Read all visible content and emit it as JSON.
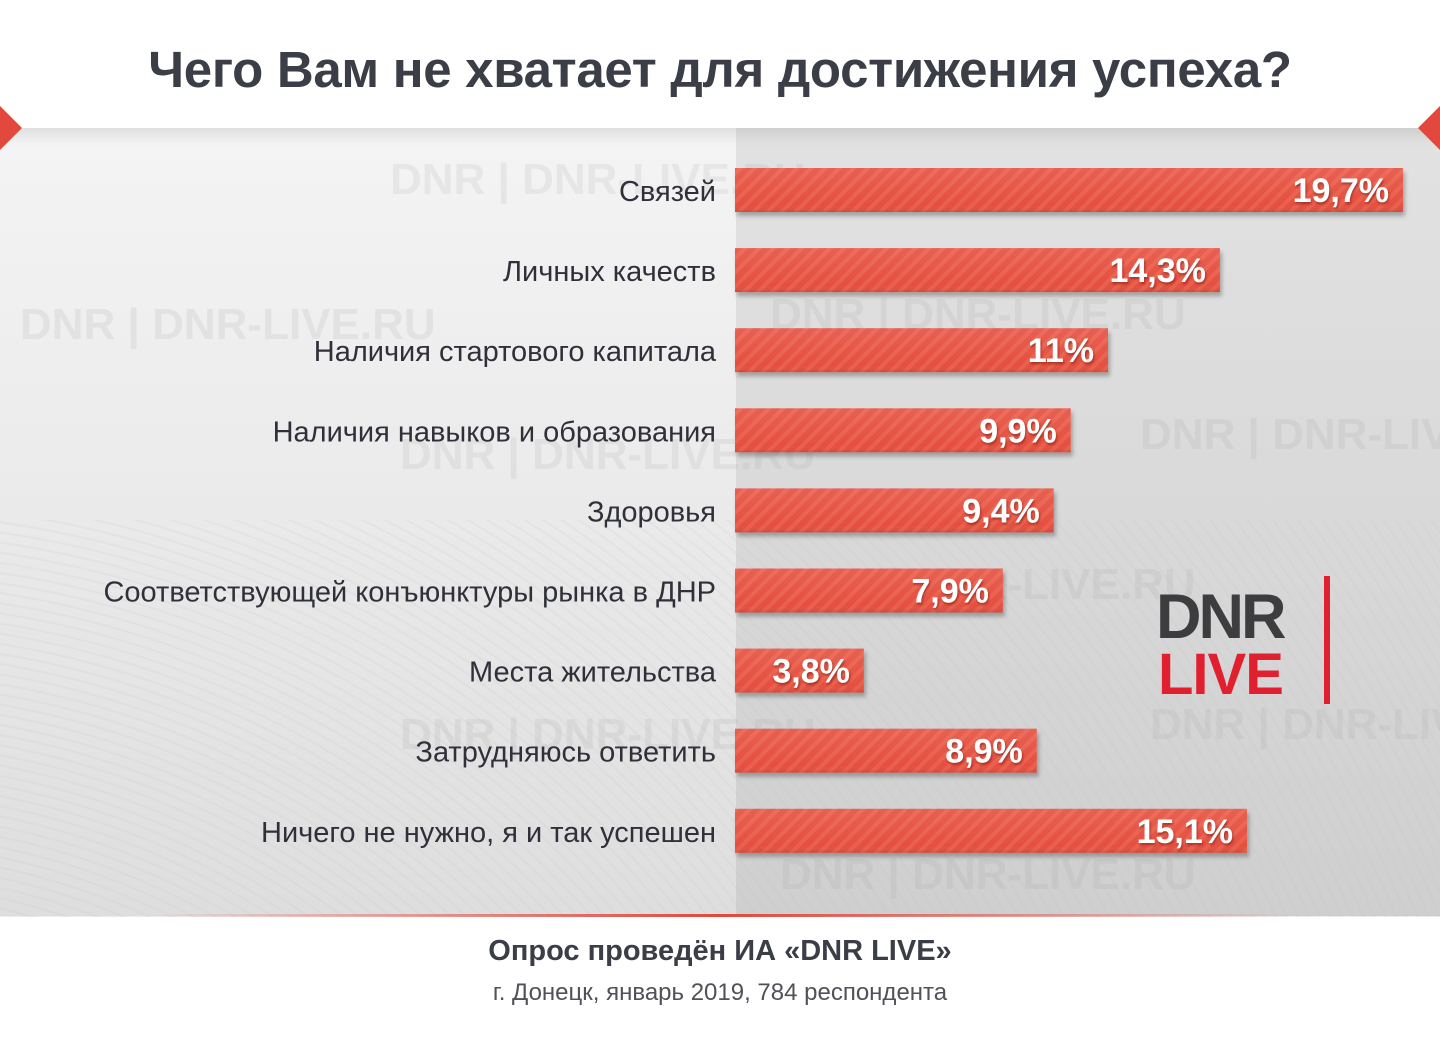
{
  "title": "Чего Вам не хватает для достижения успеха?",
  "colors": {
    "bar": "#e2483b",
    "bar_light": "#ec6552",
    "bar_shadow": "#a8281f",
    "label": "#2f3039",
    "value_label": "#ffffff",
    "brand_red": "#e0202f",
    "brand_dark": "#3d3d3f"
  },
  "chart_data": {
    "type": "bar",
    "orientation": "horizontal",
    "title": "Чего Вам не хватает для достижения успеха?",
    "unit": "%",
    "xlim": [
      0,
      19.7
    ],
    "grid": false,
    "legend": "none",
    "categories": [
      "Связей",
      "Личных качеств",
      "Наличия стартового капитала",
      "Наличия навыков и образования",
      "Здоровья",
      "Соответствующей конъюнктуры рынка в ДНР",
      "Места жительства",
      "Затрудняюсь ответить",
      "Ничего не нужно, я и так успешен"
    ],
    "values": [
      19.7,
      14.3,
      11,
      9.9,
      9.4,
      7.9,
      3.8,
      8.9,
      15.1
    ],
    "value_labels": [
      "19,7%",
      "14,3%",
      "11%",
      "9,9%",
      "9,4%",
      "7,9%",
      "3,8%",
      "8,9%",
      "15,1%"
    ]
  },
  "logo": {
    "top": "DNR",
    "bottom": "LIVE"
  },
  "watermark_text": "DNR | DNR-LIVE.RU",
  "footer": {
    "title": "Опрос проведён ИА «DNR LIVE»",
    "subtitle": "г. Донецк, январь 2019, 784 респондента"
  }
}
